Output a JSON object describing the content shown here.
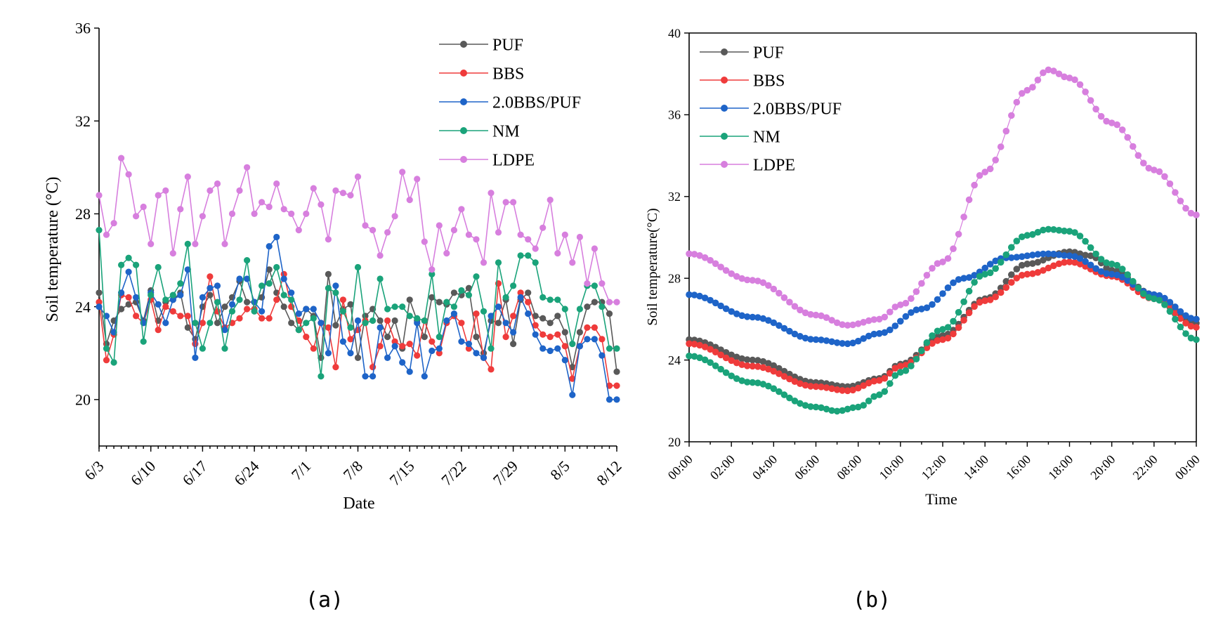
{
  "chart_data": [
    {
      "type": "line",
      "panel_label": "(a)",
      "xlabel": "Date",
      "ylabel": "Soil temperature (°C)",
      "x_index_range": [
        0,
        70
      ],
      "ylim": [
        18,
        36
      ],
      "y_ticks": [
        20,
        24,
        28,
        32,
        36
      ],
      "x_ticks": [
        {
          "label": "6/3",
          "index": 0
        },
        {
          "label": "6/10",
          "index": 7
        },
        {
          "label": "6/17",
          "index": 14
        },
        {
          "label": "6/24",
          "index": 21
        },
        {
          "label": "7/1",
          "index": 28
        },
        {
          "label": "7/8",
          "index": 35
        },
        {
          "label": "7/15",
          "index": 42
        },
        {
          "label": "7/22",
          "index": 49
        },
        {
          "label": "7/29",
          "index": 56
        },
        {
          "label": "8/5",
          "index": 63
        },
        {
          "label": "8/12",
          "index": 70
        }
      ],
      "legend_position": "top-right",
      "series": [
        {
          "name": "PUF",
          "color": "#595959",
          "values": [
            24.6,
            22.4,
            23.4,
            23.9,
            24.1,
            24.2,
            23.4,
            24.7,
            23.4,
            24.2,
            24.3,
            24.6,
            23.1,
            22.6,
            24.0,
            24.5,
            23.3,
            24.0,
            24.4,
            25.1,
            24.2,
            24.2,
            24.4,
            25.6,
            24.6,
            24.0,
            23.3,
            23.0,
            23.9,
            23.6,
            21.8,
            25.4,
            23.2,
            23.9,
            24.1,
            21.8,
            23.6,
            23.9,
            23.4,
            22.7,
            23.4,
            22.2,
            24.3,
            23.4,
            22.7,
            24.4,
            24.2,
            24.1,
            24.6,
            24.5,
            24.8,
            22.7,
            22.0,
            23.4,
            23.3,
            24.3,
            22.4,
            24.3,
            24.6,
            23.6,
            23.5,
            23.3,
            23.6,
            22.9,
            21.4,
            22.9,
            24.0,
            24.2,
            24.2,
            23.7,
            21.2
          ]
        },
        {
          "name": "BBS",
          "color": "#ef3b3b",
          "values": [
            24.2,
            21.7,
            22.8,
            24.5,
            24.4,
            23.6,
            23.3,
            24.3,
            23.0,
            24.0,
            23.8,
            23.6,
            23.6,
            22.4,
            23.3,
            25.3,
            23.8,
            23.1,
            23.3,
            23.5,
            23.9,
            23.9,
            23.5,
            23.5,
            24.3,
            25.4,
            24.0,
            23.4,
            22.7,
            22.2,
            23.3,
            23.1,
            21.4,
            24.3,
            22.6,
            23.0,
            23.4,
            21.4,
            22.3,
            23.4,
            22.5,
            22.3,
            22.4,
            21.9,
            23.4,
            22.5,
            22.0,
            23.3,
            23.6,
            23.3,
            22.2,
            23.7,
            21.8,
            21.3,
            25.0,
            22.7,
            23.6,
            24.6,
            24.2,
            23.2,
            22.8,
            22.7,
            22.8,
            22.3,
            20.9,
            22.3,
            23.1,
            23.1,
            22.6,
            20.6,
            20.6
          ]
        },
        {
          "name": "2.0BBS/PUF",
          "color": "#1e64c8",
          "values": [
            24.0,
            23.6,
            22.9,
            24.6,
            25.5,
            24.4,
            23.3,
            24.6,
            24.1,
            23.3,
            24.3,
            24.5,
            25.6,
            21.8,
            24.4,
            24.8,
            24.9,
            23.0,
            24.1,
            25.2,
            25.2,
            24.2,
            23.8,
            26.6,
            27.0,
            25.2,
            24.6,
            23.7,
            23.9,
            23.9,
            23.3,
            22.0,
            24.9,
            22.5,
            22.0,
            23.4,
            21.0,
            21.0,
            23.1,
            21.8,
            22.3,
            21.6,
            21.2,
            23.3,
            21.0,
            22.1,
            22.2,
            23.4,
            23.7,
            22.5,
            22.4,
            22.0,
            21.8,
            23.6,
            24.0,
            23.3,
            22.9,
            24.4,
            23.7,
            22.8,
            22.2,
            22.1,
            22.2,
            21.7,
            20.2,
            22.3,
            22.6,
            22.6,
            21.9,
            20.0,
            20.0
          ]
        },
        {
          "name": "NM",
          "color": "#1aa37a",
          "values": [
            27.3,
            22.2,
            21.6,
            25.8,
            26.1,
            25.8,
            22.5,
            24.5,
            25.7,
            24.3,
            24.5,
            25.0,
            26.7,
            23.3,
            22.2,
            23.3,
            24.2,
            22.2,
            23.8,
            24.3,
            26.0,
            23.8,
            24.9,
            25.0,
            25.7,
            24.5,
            24.3,
            23.0,
            23.3,
            23.5,
            21.0,
            24.8,
            24.6,
            23.8,
            23.1,
            25.7,
            23.3,
            23.4,
            25.2,
            23.9,
            24.0,
            24.0,
            23.6,
            23.5,
            23.4,
            25.4,
            22.7,
            24.2,
            24.0,
            24.7,
            24.5,
            25.3,
            23.8,
            22.2,
            25.9,
            24.4,
            24.9,
            26.2,
            26.2,
            25.9,
            24.4,
            24.3,
            24.3,
            23.9,
            22.4,
            23.9,
            24.9,
            24.9,
            24.0,
            22.2,
            22.2
          ]
        },
        {
          "name": "LDPE",
          "color": "#d77fde",
          "values": [
            28.8,
            27.1,
            27.6,
            30.4,
            29.7,
            27.9,
            28.3,
            26.7,
            28.8,
            29.0,
            26.3,
            28.2,
            29.6,
            26.7,
            27.9,
            29.0,
            29.3,
            26.7,
            28.0,
            29.0,
            30.0,
            28.0,
            28.5,
            28.3,
            29.3,
            28.2,
            28.0,
            27.3,
            28.0,
            29.1,
            28.4,
            26.9,
            29.0,
            28.9,
            28.8,
            29.6,
            27.5,
            27.3,
            26.2,
            27.2,
            27.9,
            29.8,
            28.6,
            29.5,
            26.8,
            25.6,
            27.5,
            26.3,
            27.3,
            28.2,
            27.1,
            26.9,
            25.9,
            28.9,
            27.2,
            28.5,
            28.5,
            27.1,
            26.9,
            26.5,
            27.4,
            28.6,
            26.3,
            27.1,
            25.9,
            27.0,
            25.0,
            26.5,
            25.0,
            24.2,
            24.2
          ]
        }
      ]
    },
    {
      "type": "line",
      "panel_label": "(b)",
      "xlabel": "Time",
      "ylabel": "Soil temperature(°C)",
      "x_hour_range": [
        0,
        24
      ],
      "ylim": [
        20,
        40
      ],
      "y_ticks": [
        20,
        24,
        28,
        32,
        36,
        40
      ],
      "x_ticks": [
        "00:00",
        "02:00",
        "04:00",
        "06:00",
        "08:00",
        "10:00",
        "12:00",
        "14:00",
        "16:00",
        "18:00",
        "20:00",
        "22:00",
        "00:00"
      ],
      "legend_position": "top-left",
      "series": [
        {
          "name": "PUF",
          "color": "#595959",
          "keypoints": [
            [
              0,
              25.0
            ],
            [
              3,
              24.0
            ],
            [
              6,
              22.9
            ],
            [
              7.5,
              22.7
            ],
            [
              9,
              23.1
            ],
            [
              10,
              23.8
            ],
            [
              12,
              25.2
            ],
            [
              14,
              27.0
            ],
            [
              16,
              28.7
            ],
            [
              18,
              29.3
            ],
            [
              19,
              29.1
            ],
            [
              20,
              28.4
            ],
            [
              22,
              27.2
            ],
            [
              24,
              25.8
            ]
          ]
        },
        {
          "name": "BBS",
          "color": "#ef3b3b",
          "keypoints": [
            [
              0,
              24.8
            ],
            [
              3,
              23.7
            ],
            [
              6,
              22.7
            ],
            [
              7.5,
              22.5
            ],
            [
              9,
              23.0
            ],
            [
              10,
              23.7
            ],
            [
              12,
              25.0
            ],
            [
              14,
              26.9
            ],
            [
              16,
              28.2
            ],
            [
              18,
              28.8
            ],
            [
              20,
              28.1
            ],
            [
              22,
              27.0
            ],
            [
              24,
              25.6
            ]
          ]
        },
        {
          "name": "2.0BBS/PUF",
          "color": "#1e64c8",
          "keypoints": [
            [
              0,
              27.2
            ],
            [
              3,
              26.1
            ],
            [
              6,
              25.0
            ],
            [
              7.5,
              24.8
            ],
            [
              9,
              25.3
            ],
            [
              11,
              26.5
            ],
            [
              13,
              28.0
            ],
            [
              15,
              29.0
            ],
            [
              17,
              29.2
            ],
            [
              18,
              29.1
            ],
            [
              20,
              28.2
            ],
            [
              22,
              27.2
            ],
            [
              24,
              26.0
            ]
          ]
        },
        {
          "name": "NM",
          "color": "#1aa37a",
          "keypoints": [
            [
              0,
              24.2
            ],
            [
              3,
              22.9
            ],
            [
              6,
              21.7
            ],
            [
              7,
              21.5
            ],
            [
              8,
              21.7
            ],
            [
              9,
              22.3
            ],
            [
              10,
              23.4
            ],
            [
              12,
              25.5
            ],
            [
              14,
              28.2
            ],
            [
              16,
              30.1
            ],
            [
              17,
              30.4
            ],
            [
              18,
              30.3
            ],
            [
              20,
              28.7
            ],
            [
              22,
              27.0
            ],
            [
              24,
              25.0
            ]
          ]
        },
        {
          "name": "LDPE",
          "color": "#d77fde",
          "keypoints": [
            [
              0,
              29.2
            ],
            [
              3,
              27.9
            ],
            [
              6,
              26.2
            ],
            [
              7.5,
              25.7
            ],
            [
              9,
              26.0
            ],
            [
              10,
              26.7
            ],
            [
              12,
              28.8
            ],
            [
              14,
              33.2
            ],
            [
              16,
              37.2
            ],
            [
              17,
              38.2
            ],
            [
              18,
              37.8
            ],
            [
              20,
              35.6
            ],
            [
              22,
              33.3
            ],
            [
              24,
              31.1
            ]
          ]
        }
      ]
    }
  ]
}
